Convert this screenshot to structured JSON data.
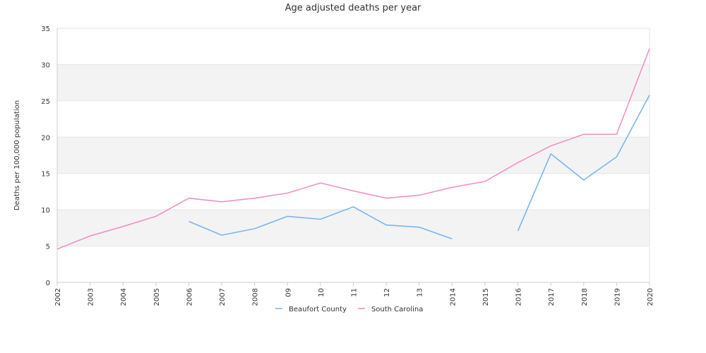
{
  "chart_data": {
    "type": "line",
    "title": "Age adjusted deaths per year",
    "xlabel": "",
    "ylabel": "Deaths per 100,000 population",
    "ylim": [
      0,
      35
    ],
    "yticks": [
      0,
      5,
      10,
      15,
      20,
      25,
      30,
      35
    ],
    "categories": [
      "2002",
      "2003",
      "2004",
      "2005",
      "2006",
      "2007",
      "2008",
      "09",
      "10",
      "11",
      "12",
      "13",
      "2014",
      "2015",
      "2016",
      "2017",
      "2018",
      "2019",
      "2020"
    ],
    "grid": "alternating horizontal bands",
    "legend": "bottom-center",
    "series": [
      {
        "name": "Beaufort County",
        "color": "#7cb5ec",
        "values": [
          null,
          null,
          null,
          null,
          8.4,
          6.5,
          7.4,
          9.1,
          8.7,
          10.4,
          7.9,
          7.6,
          6.0,
          null,
          7.1,
          17.7,
          14.1,
          17.3,
          25.8
        ]
      },
      {
        "name": "South Carolina",
        "color": "#f192c4",
        "values": [
          4.6,
          6.4,
          7.7,
          9.1,
          11.6,
          11.1,
          11.6,
          12.3,
          13.7,
          12.6,
          11.6,
          12.0,
          13.1,
          13.9,
          16.5,
          18.8,
          20.4,
          20.4,
          32.2
        ]
      }
    ]
  }
}
